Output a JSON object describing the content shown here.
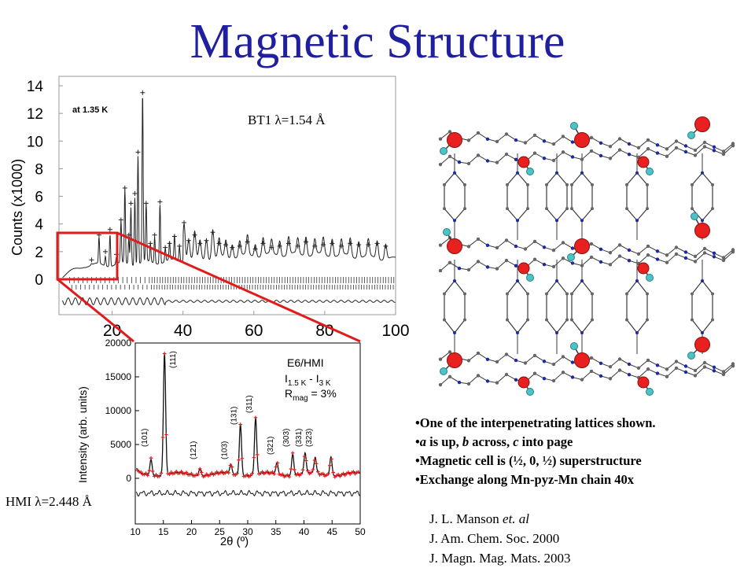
{
  "slide_title": "Magnetic Structure",
  "bt1_chart": {
    "type": "line",
    "ylabel": "Counts (x1000)",
    "inset_label": "at 1.35 K",
    "wavelength_label": "BT1 λ=1.54 Å",
    "x_ticks": [
      "20",
      "40",
      "60",
      "80",
      "100"
    ],
    "y_ticks": [
      "0",
      "2",
      "4",
      "6",
      "8",
      "10",
      "12",
      "14"
    ],
    "xlim": [
      5,
      100
    ],
    "ylim": [
      0,
      14
    ],
    "zoom_box": {
      "x_range": [
        5,
        22
      ],
      "y_range": [
        0,
        3.5
      ]
    },
    "peaks": [
      {
        "x": 14.2,
        "y": 1.4
      },
      {
        "x": 16.3,
        "y": 3.2
      },
      {
        "x": 18.1,
        "y": 2.0
      },
      {
        "x": 19.4,
        "y": 3.6
      },
      {
        "x": 21.2,
        "y": 1.8
      },
      {
        "x": 22.5,
        "y": 4.3
      },
      {
        "x": 23.6,
        "y": 6.6
      },
      {
        "x": 24.7,
        "y": 3.2
      },
      {
        "x": 25.3,
        "y": 5.5
      },
      {
        "x": 26.4,
        "y": 6.2
      },
      {
        "x": 27.3,
        "y": 9.2
      },
      {
        "x": 28.6,
        "y": 13.5
      },
      {
        "x": 29.6,
        "y": 5.5
      },
      {
        "x": 30.8,
        "y": 2.6
      },
      {
        "x": 32.0,
        "y": 3.2
      },
      {
        "x": 33.5,
        "y": 5.6
      },
      {
        "x": 35.0,
        "y": 2.3
      },
      {
        "x": 36.2,
        "y": 2.6
      },
      {
        "x": 37.6,
        "y": 3.1
      },
      {
        "x": 39.0,
        "y": 2.4
      },
      {
        "x": 40.3,
        "y": 4.1
      },
      {
        "x": 41.6,
        "y": 2.8
      },
      {
        "x": 43.3,
        "y": 3.2
      },
      {
        "x": 44.8,
        "y": 2.6
      },
      {
        "x": 46.6,
        "y": 2.8
      },
      {
        "x": 48.4,
        "y": 3.4
      },
      {
        "x": 50.2,
        "y": 2.6
      },
      {
        "x": 52.1,
        "y": 2.5
      },
      {
        "x": 53.9,
        "y": 2.3
      },
      {
        "x": 56.0,
        "y": 2.4
      },
      {
        "x": 58.2,
        "y": 2.7
      },
      {
        "x": 60.4,
        "y": 2.2
      },
      {
        "x": 62.6,
        "y": 2.6
      },
      {
        "x": 65.0,
        "y": 2.3
      },
      {
        "x": 67.3,
        "y": 2.4
      },
      {
        "x": 69.8,
        "y": 2.6
      },
      {
        "x": 72.4,
        "y": 2.4
      },
      {
        "x": 74.7,
        "y": 2.7
      },
      {
        "x": 77.2,
        "y": 2.4
      },
      {
        "x": 79.6,
        "y": 2.5
      },
      {
        "x": 82.1,
        "y": 2.6
      },
      {
        "x": 84.7,
        "y": 2.4
      },
      {
        "x": 87.2,
        "y": 2.6
      },
      {
        "x": 89.6,
        "y": 2.5
      },
      {
        "x": 92.3,
        "y": 2.5
      },
      {
        "x": 94.8,
        "y": 2.6
      },
      {
        "x": 97.2,
        "y": 2.4
      }
    ]
  },
  "hmi_chart": {
    "type": "line",
    "xlabel": "2θ (º)",
    "ylabel": "Intensity (arb. units)",
    "x_ticks": [
      "10",
      "15",
      "20",
      "25",
      "30",
      "35",
      "40",
      "45",
      "50"
    ],
    "y_ticks": [
      "0",
      "5000",
      "10000",
      "15000",
      "20000"
    ],
    "xlim": [
      10,
      50
    ],
    "ylim": [
      0,
      20000
    ],
    "legend_line1": "E6/HMI",
    "legend_line2": "I",
    "legend_sub1": "1.5 K",
    "legend_mid": " - I",
    "legend_sub2": "3 K",
    "legend_line3": "R",
    "legend_sub3": "mag",
    "legend_tail": " = 3%",
    "wavelength_label": "HMI λ=2.448 Å",
    "peaks": [
      {
        "label": "(101)",
        "x": 12.8,
        "y": 2400
      },
      {
        "label": "(111)",
        "x": 15.2,
        "y": 18000
      },
      {
        "label": "(121)",
        "x": 21.5,
        "y": 1100
      },
      {
        "label": "(103)",
        "x": 27.0,
        "y": 1400
      },
      {
        "label": "(131)",
        "x": 28.7,
        "y": 7600
      },
      {
        "label": "(311)",
        "x": 31.4,
        "y": 8400
      },
      {
        "label": "(321)",
        "x": 35.2,
        "y": 1700
      },
      {
        "label": "(303)",
        "x": 38.0,
        "y": 3200
      },
      {
        "label": "(331)",
        "x": 40.2,
        "y": 3000
      },
      {
        "label": "(323)",
        "x": 42.0,
        "y": 2300
      },
      {
        "label": "",
        "x": 44.8,
        "y": 2800
      }
    ]
  },
  "bullets": [
    {
      "parts": [
        {
          "t": "One of the interpenetrating lattices shown.",
          "i": false
        }
      ]
    },
    {
      "parts": [
        {
          "t": "a",
          "i": true
        },
        {
          "t": " is up, ",
          "i": false
        },
        {
          "t": "b",
          "i": true
        },
        {
          "t": " across, ",
          "i": false
        },
        {
          "t": "c",
          "i": true
        },
        {
          "t": " into page",
          "i": false
        }
      ]
    },
    {
      "parts": [
        {
          "t": "Magnetic cell is (½, 0, ½) superstructure",
          "i": false
        }
      ]
    },
    {
      "parts": [
        {
          "t": "Exchange along Mn-pyz-Mn chain 40x",
          "i": false
        }
      ]
    }
  ],
  "references": {
    "author_main": "J. L. Manson ",
    "author_etal": "et. al",
    "journal_1": "J. Am. Chem. Soc. 2000",
    "journal_2": "J. Magn. Mag. Mats. 2003"
  },
  "colors": {
    "title": "#1f1fa0",
    "highlight": "#e31a1c",
    "atom_mn": "#e8201f",
    "spin_arrow": "#4cc3c8",
    "bond": "#3a3a3a"
  }
}
